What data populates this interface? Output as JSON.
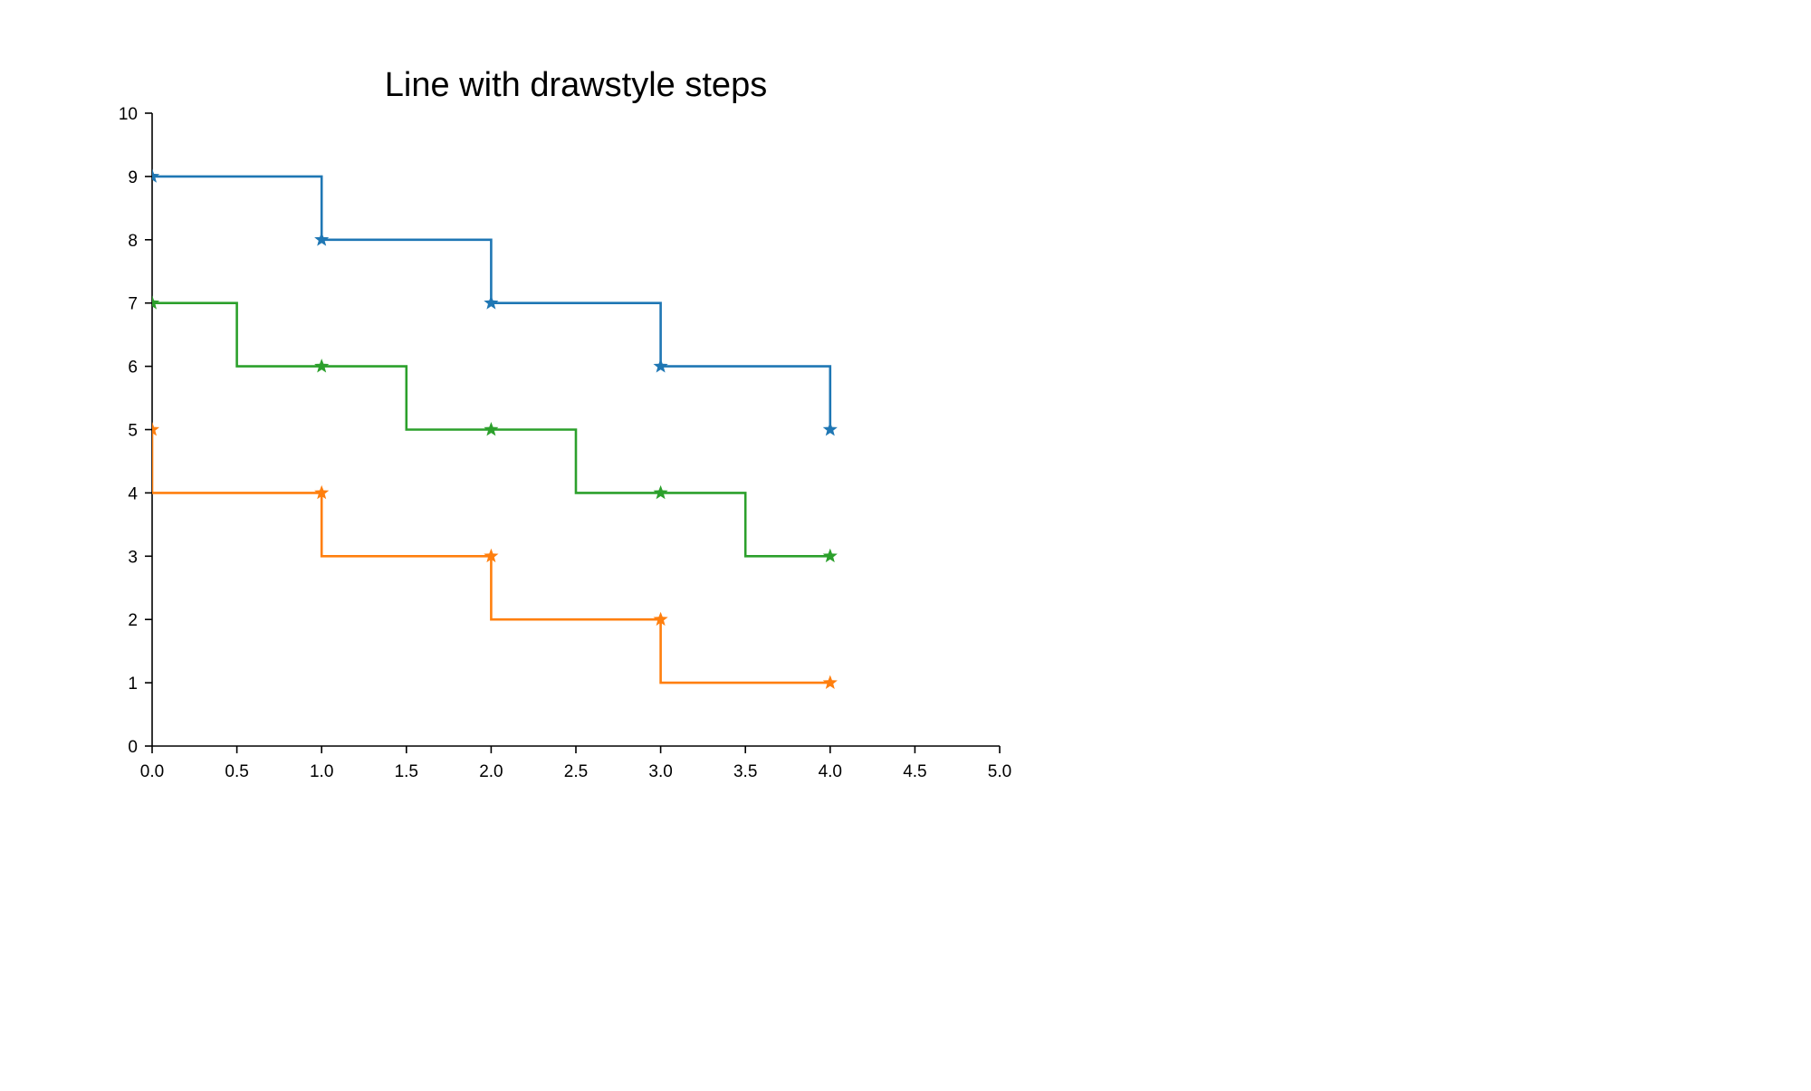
{
  "chart_data": {
    "type": "line",
    "title": "Line with drawstyle steps",
    "xlabel": "",
    "ylabel": "",
    "xlim": [
      0,
      5
    ],
    "ylim": [
      0,
      10
    ],
    "x_ticks": [
      "0.0",
      "0.5",
      "1.0",
      "1.5",
      "2.0",
      "2.5",
      "3.0",
      "3.5",
      "4.0",
      "4.5",
      "5.0"
    ],
    "y_ticks": [
      "0",
      "1",
      "2",
      "3",
      "4",
      "5",
      "6",
      "7",
      "8",
      "9",
      "10"
    ],
    "grid": false,
    "legend": "none",
    "marker": "star",
    "series": [
      {
        "drawstyle": "steps-post",
        "color": "#1f77b4",
        "x": [
          0,
          1,
          2,
          3,
          4
        ],
        "y": [
          9,
          8,
          7,
          6,
          5
        ]
      },
      {
        "drawstyle": "steps-pre",
        "color": "#ff7f0e",
        "x": [
          0,
          1,
          2,
          3,
          4
        ],
        "y": [
          5,
          4,
          3,
          2,
          1
        ]
      },
      {
        "drawstyle": "steps-mid",
        "color": "#2ca02c",
        "x": [
          0,
          1,
          2,
          3,
          4
        ],
        "y": [
          7,
          6,
          5,
          4,
          3
        ]
      }
    ]
  }
}
